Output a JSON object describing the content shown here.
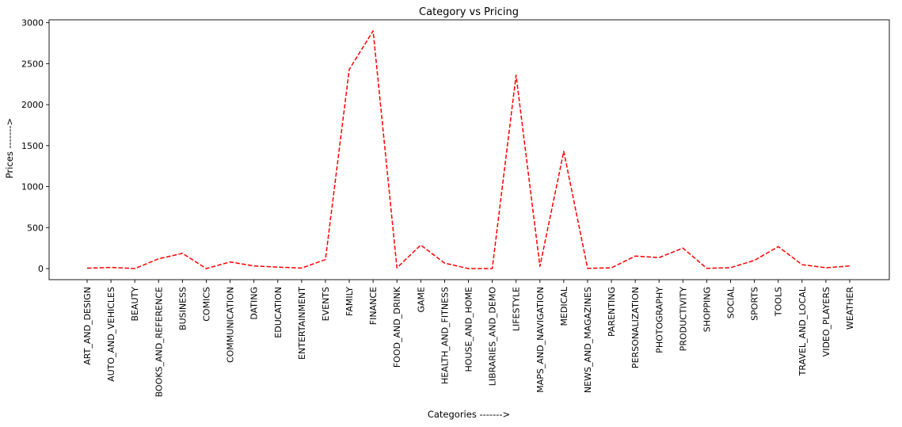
{
  "chart_data": {
    "type": "line",
    "title": "Category vs Pricing",
    "xlabel": "Categories ------->",
    "ylabel": "Prices ------->",
    "categories": [
      "ART_AND_DESIGN",
      "AUTO_AND_VEHICLES",
      "BEAUTY",
      "BOOKS_AND_REFERENCE",
      "BUSINESS",
      "COMICS",
      "COMMUNICATION",
      "DATING",
      "EDUCATION",
      "ENTERTAINMENT",
      "EVENTS",
      "FAMILY",
      "FINANCE",
      "FOOD_AND_DRINK",
      "GAME",
      "HEALTH_AND_FITNESS",
      "HOUSE_AND_HOME",
      "LIBRARIES_AND_DEMO",
      "LIFESTYLE",
      "MAPS_AND_NAVIGATION",
      "MEDICAL",
      "NEWS_AND_MAGAZINES",
      "PARENTING",
      "PERSONALIZATION",
      "PHOTOGRAPHY",
      "PRODUCTIVITY",
      "SHOPPING",
      "SOCIAL",
      "SPORTS",
      "TOOLS",
      "TRAVEL_AND_LOCAL",
      "VIDEO_PLAYERS",
      "WEATHER"
    ],
    "series": [
      {
        "values": [
          5,
          14,
          0,
          119,
          186,
          0,
          81,
          32,
          18,
          6,
          110,
          2430,
          2900,
          9,
          287,
          67,
          0,
          0,
          2360,
          27,
          1430,
          3,
          9,
          153,
          134,
          250,
          3,
          11,
          100,
          268,
          48,
          10,
          32
        ],
        "color": "#ff0000",
        "linestyle": "dashed"
      }
    ],
    "yticks": [
      0,
      500,
      1000,
      1500,
      2000,
      2500,
      3000
    ],
    "ylim": [
      -135,
      3035
    ],
    "grid": false,
    "legend": "none"
  }
}
